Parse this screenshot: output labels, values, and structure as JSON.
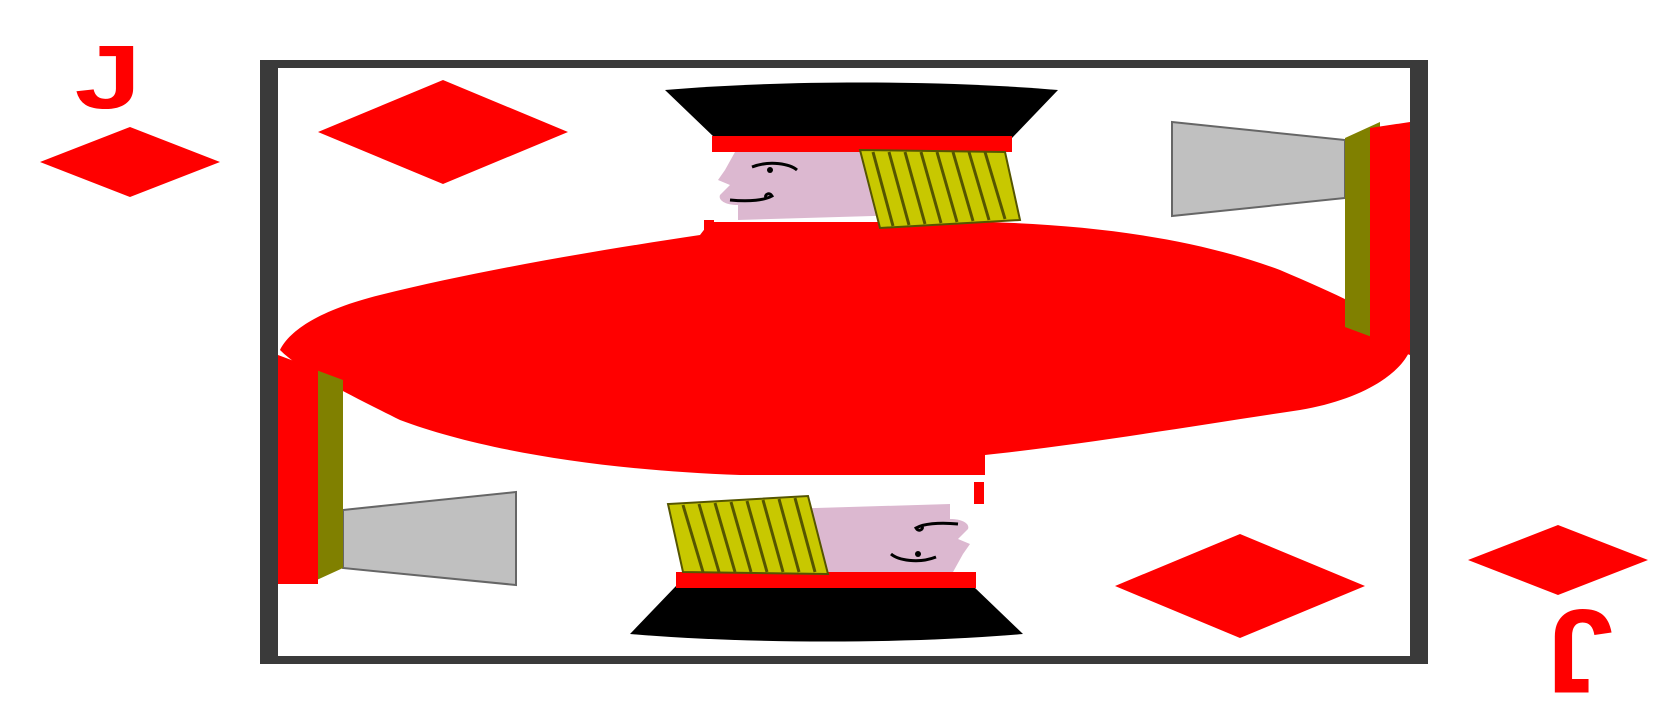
{
  "card": {
    "rank": "J",
    "suit": "diamonds",
    "figure": "jack",
    "colors": {
      "suit_red": "#ff0000",
      "border": "#3a3a3a",
      "hat": "#000000",
      "skin": "#dcb8d0",
      "hair": "#c8c800",
      "hair_stripe": "#555500",
      "weapon_blade": "#c0c0c0",
      "weapon_handle": "#808000",
      "background": "#ffffff"
    },
    "icons": [
      "diamond-pip-icon",
      "jack-figure-icon",
      "axe-icon"
    ]
  }
}
